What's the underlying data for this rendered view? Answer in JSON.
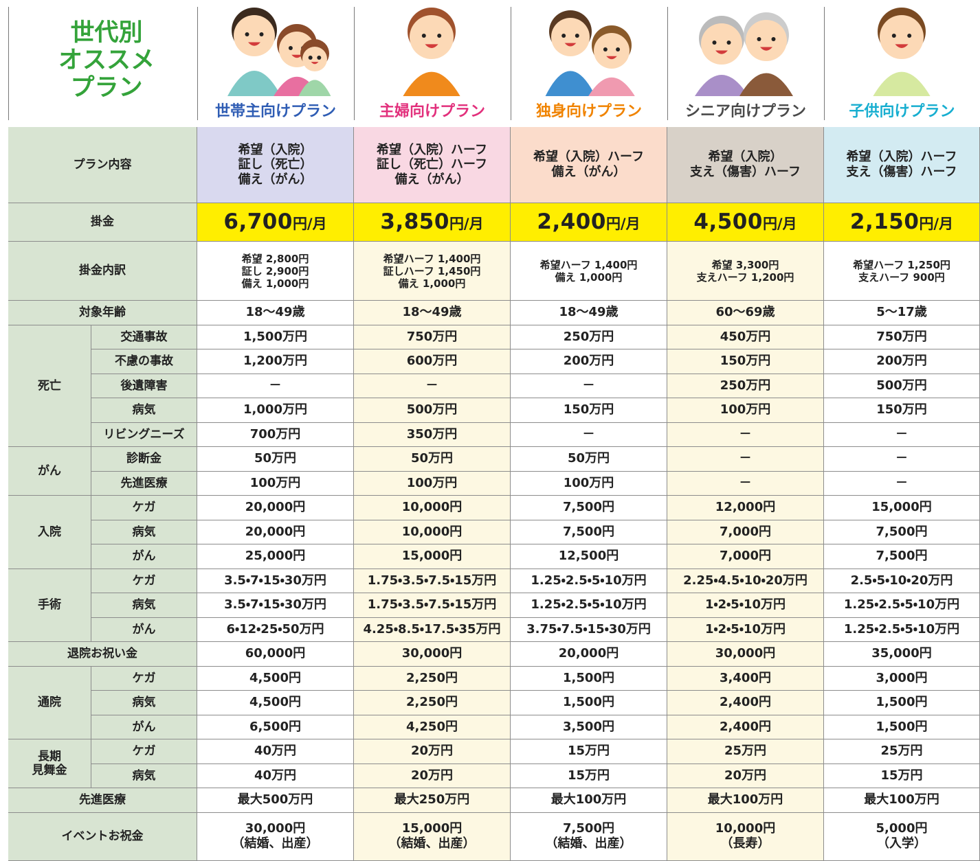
{
  "header": {
    "title": [
      "世代別",
      "オススメ",
      "プラン"
    ],
    "plans": [
      "世帯主向けプラン",
      "主婦向けプラン",
      "独身向けプラン",
      "シニア向けプラン",
      "子供向けプラン"
    ]
  },
  "table": {
    "rows": [
      {
        "label": "プラン内容",
        "cells": [
          [
            "希望（入院）",
            "証し（死亡）",
            "備え（がん）"
          ],
          [
            "希望（入院）ハーフ",
            "証し（死亡）ハーフ",
            "備え（がん）"
          ],
          [
            "希望（入院）ハーフ",
            "備え（がん）"
          ],
          [
            "希望（入院）",
            "支え（傷害）ハーフ"
          ],
          [
            "希望（入院）ハーフ",
            "支え（傷害）ハーフ"
          ]
        ]
      },
      {
        "label": "掛金",
        "cells": [
          {
            "amount": "6,700",
            "unit": "円/月"
          },
          {
            "amount": "3,850",
            "unit": "円/月"
          },
          {
            "amount": "2,400",
            "unit": "円/月"
          },
          {
            "amount": "4,500",
            "unit": "円/月"
          },
          {
            "amount": "2,150",
            "unit": "円/月"
          }
        ]
      },
      {
        "label": "掛金内訳",
        "cells": [
          [
            "希望 2,800円",
            "証し 2,900円",
            "備え 1,000円"
          ],
          [
            "希望ハーフ 1,400円",
            "証しハーフ 1,450円",
            "備え 1,000円"
          ],
          [
            "希望ハーフ 1,400円",
            "備え 1,000円"
          ],
          [
            "希望 3,300円",
            "支えハーフ 1,200円"
          ],
          [
            "希望ハーフ 1,250円",
            "支えハーフ 900円"
          ]
        ]
      },
      {
        "label": "対象年齢",
        "cells": [
          "18〜49歳",
          "18〜49歳",
          "18〜49歳",
          "60〜69歳",
          "5〜17歳"
        ]
      },
      {
        "label": "死亡",
        "items": [
          {
            "label": "交通事故",
            "cells": [
              "1,500万円",
              "750万円",
              "250万円",
              "450万円",
              "750万円"
            ]
          },
          {
            "label": "不慮の事故",
            "cells": [
              "1,200万円",
              "600万円",
              "200万円",
              "150万円",
              "200万円"
            ]
          },
          {
            "label": "後遺障害",
            "cells": [
              "－",
              "－",
              "－",
              "250万円",
              "500万円"
            ]
          },
          {
            "label": "病気",
            "cells": [
              "1,000万円",
              "500万円",
              "150万円",
              "100万円",
              "150万円"
            ]
          },
          {
            "label": "リビングニーズ",
            "cells": [
              "700万円",
              "350万円",
              "－",
              "－",
              "－"
            ]
          }
        ]
      },
      {
        "label": "がん",
        "items": [
          {
            "label": "診断金",
            "cells": [
              "50万円",
              "50万円",
              "50万円",
              "－",
              "－"
            ]
          },
          {
            "label": "先進医療",
            "cells": [
              "100万円",
              "100万円",
              "100万円",
              "－",
              "－"
            ]
          }
        ]
      },
      {
        "label": "入院",
        "items": [
          {
            "label": "ケガ",
            "cells": [
              "20,000円",
              "10,000円",
              "7,500円",
              "12,000円",
              "15,000円"
            ]
          },
          {
            "label": "病気",
            "cells": [
              "20,000円",
              "10,000円",
              "7,500円",
              "7,000円",
              "7,500円"
            ]
          },
          {
            "label": "がん",
            "cells": [
              "25,000円",
              "15,000円",
              "12,500円",
              "7,000円",
              "7,500円"
            ]
          }
        ]
      },
      {
        "label": "手術",
        "items": [
          {
            "label": "ケガ",
            "cells": [
              "3.5・7・15・30万円",
              "1.75・3.5・7.5・15万円",
              "1.25・2.5・5・10万円",
              "2.25・4.5・10・20万円",
              "2.5・5・10・20万円"
            ]
          },
          {
            "label": "病気",
            "cells": [
              "3.5・7・15・30万円",
              "1.75・3.5・7.5・15万円",
              "1.25・2.5・5・10万円",
              "1・2・5・10万円",
              "1.25・2.5・5・10万円"
            ]
          },
          {
            "label": "がん",
            "cells": [
              "6・12・25・50万円",
              "4.25・8.5・17.5・35万円",
              "3.75・7.5・15・30万円",
              "1・2・5・10万円",
              "1.25・2.5・5・10万円"
            ]
          }
        ]
      },
      {
        "label": "退院お祝い金",
        "cells": [
          "60,000円",
          "30,000円",
          "20,000円",
          "30,000円",
          "35,000円"
        ]
      },
      {
        "label": "通院",
        "items": [
          {
            "label": "ケガ",
            "cells": [
              "4,500円",
              "2,250円",
              "1,500円",
              "3,400円",
              "3,000円"
            ]
          },
          {
            "label": "病気",
            "cells": [
              "4,500円",
              "2,250円",
              "1,500円",
              "2,400円",
              "1,500円"
            ]
          },
          {
            "label": "がん",
            "cells": [
              "6,500円",
              "4,250円",
              "3,500円",
              "2,400円",
              "1,500円"
            ]
          }
        ]
      },
      {
        "label": [
          "長期",
          "見舞金"
        ],
        "items": [
          {
            "label": "ケガ",
            "cells": [
              "40万円",
              "20万円",
              "15万円",
              "25万円",
              "25万円"
            ]
          },
          {
            "label": "病気",
            "cells": [
              "40万円",
              "20万円",
              "15万円",
              "20万円",
              "15万円"
            ]
          }
        ]
      },
      {
        "label": "先進医療",
        "cells": [
          "最大500万円",
          "最大250万円",
          "最大100万円",
          "最大100万円",
          "最大100万円"
        ]
      },
      {
        "label": "イベントお祝金",
        "cells": [
          [
            "30,000円",
            "（結婚、出産）"
          ],
          [
            "15,000円",
            "（結婚、出産）"
          ],
          [
            "7,500円",
            "（結婚、出産）"
          ],
          [
            "10,000円",
            "（長寿）"
          ],
          [
            "5,000円",
            "（入学）"
          ]
        ]
      }
    ]
  }
}
